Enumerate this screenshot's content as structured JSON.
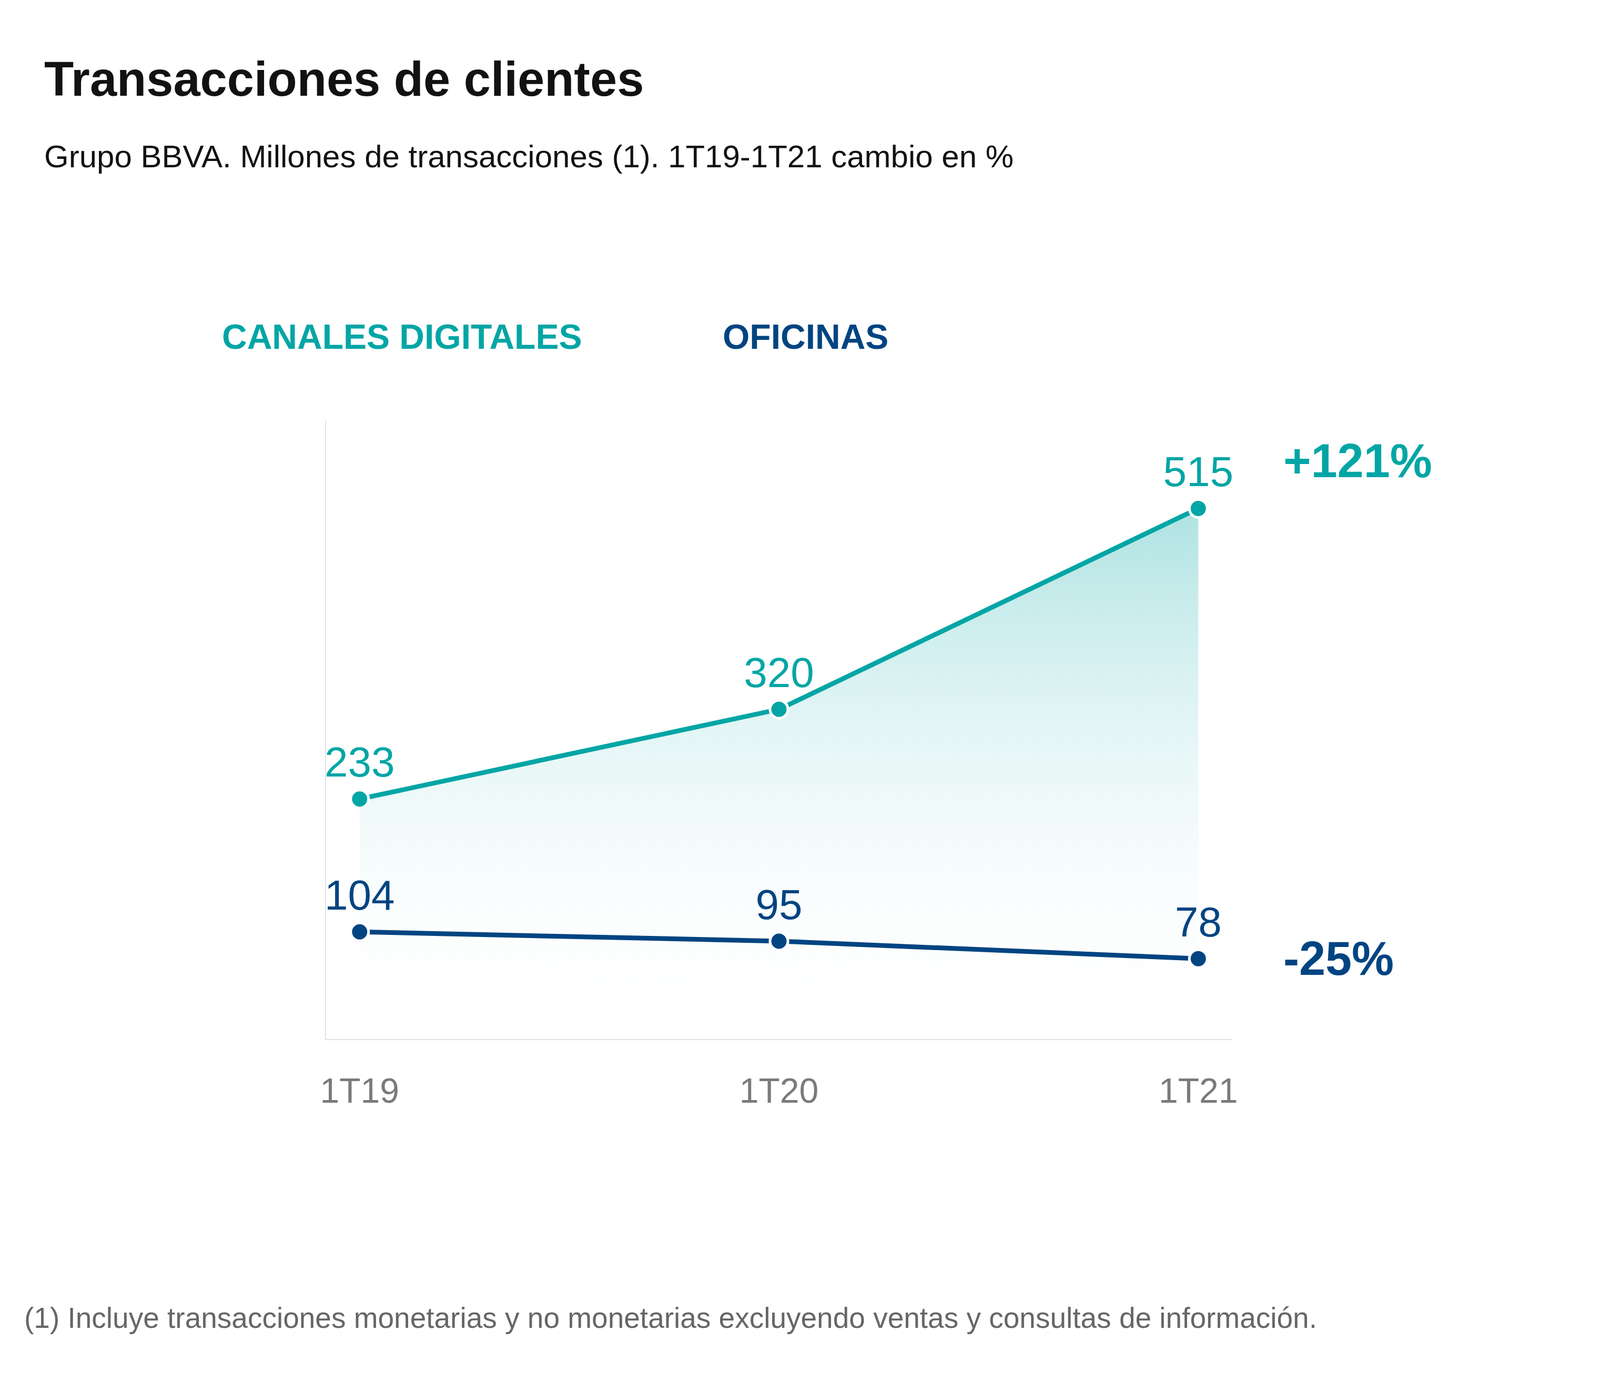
{
  "chart_data": {
    "type": "line",
    "title": "Transacciones de clientes",
    "subtitle": "Grupo BBVA. Millones de transacciones (1). 1T19-1T21 cambio en %",
    "footnote": "(1) Incluye transacciones monetarias y no monetarias excluyendo ventas y consultas de información.",
    "categories": [
      "1T19",
      "1T20",
      "1T21"
    ],
    "series": [
      {
        "name": "CANALES DIGITALES",
        "color": "#02a5a5",
        "type": "area",
        "values": [
          233,
          320,
          515
        ]
      },
      {
        "name": "OFICINAS",
        "color": "#004481",
        "type": "line",
        "values": [
          104,
          95,
          78
        ]
      }
    ],
    "annotations": [
      {
        "text": "+121%",
        "series": "CANALES DIGITALES"
      },
      {
        "text": "-25%",
        "series": "OFICINAS"
      }
    ],
    "ylim": [
      0,
      600
    ],
    "grid": false,
    "data_labels": true,
    "tick_labels": "x",
    "marker": "circle"
  }
}
